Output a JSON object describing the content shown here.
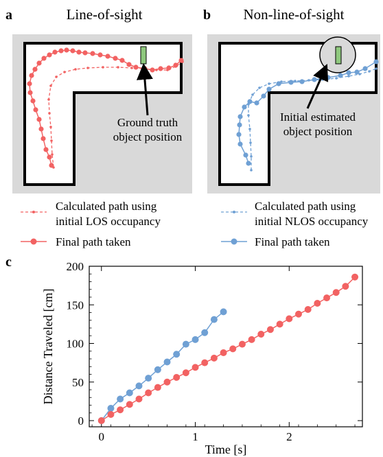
{
  "panels": {
    "a": {
      "letter": "a",
      "title": "Line-of-sight",
      "annotation_line1": "Ground truth",
      "annotation_line2": "object position",
      "legend": {
        "calc_line1": "Calculated path using",
        "calc_line2": "initial LOS occupancy",
        "final": "Final path taken"
      },
      "color": "#f26262"
    },
    "b": {
      "letter": "b",
      "title": "Non-line-of-sight",
      "annotation_line1": "Initial estimated",
      "annotation_line2": "object position",
      "legend": {
        "calc_line1": "Calculated path using",
        "calc_line2": "initial NLOS occupancy",
        "final": "Final path taken"
      },
      "color": "#6fa0d4"
    },
    "c": {
      "letter": "c"
    }
  },
  "colors": {
    "red": "#f26262",
    "blue": "#6fa0d4",
    "room_fill": "#d9d9d9",
    "object_fill": "#8fc97e"
  },
  "chart_data": {
    "type": "line",
    "xlabel": "Time [s]",
    "ylabel": "Distance Traveled [cm]",
    "xlim": [
      -0.13,
      2.78
    ],
    "ylim": [
      -8,
      200
    ],
    "xticks": [
      0,
      1,
      2
    ],
    "yticks": [
      0,
      50,
      100,
      150,
      200
    ],
    "grid": false,
    "series": [
      {
        "color": "#6fa0d4",
        "x": [
          0,
          0.1,
          0.2,
          0.3,
          0.4,
          0.5,
          0.6,
          0.7,
          0.8,
          0.9,
          1.0,
          1.1,
          1.2,
          1.3
        ],
        "y": [
          0,
          16,
          28,
          36,
          45,
          55,
          66,
          76,
          86,
          99,
          105,
          114,
          131,
          141
        ]
      },
      {
        "color": "#f26262",
        "x": [
          0,
          0.1,
          0.2,
          0.3,
          0.4,
          0.5,
          0.6,
          0.7,
          0.8,
          0.9,
          1.0,
          1.1,
          1.2,
          1.3,
          1.4,
          1.5,
          1.6,
          1.7,
          1.8,
          1.9,
          2.0,
          2.1,
          2.2,
          2.3,
          2.4,
          2.5,
          2.6,
          2.7
        ],
        "y": [
          0,
          8,
          14,
          21,
          28,
          36,
          43,
          50,
          56,
          62,
          69,
          75,
          81,
          88,
          93,
          99,
          105,
          112,
          118,
          125,
          132,
          138,
          144,
          152,
          159,
          166,
          174,
          186
        ]
      }
    ]
  }
}
